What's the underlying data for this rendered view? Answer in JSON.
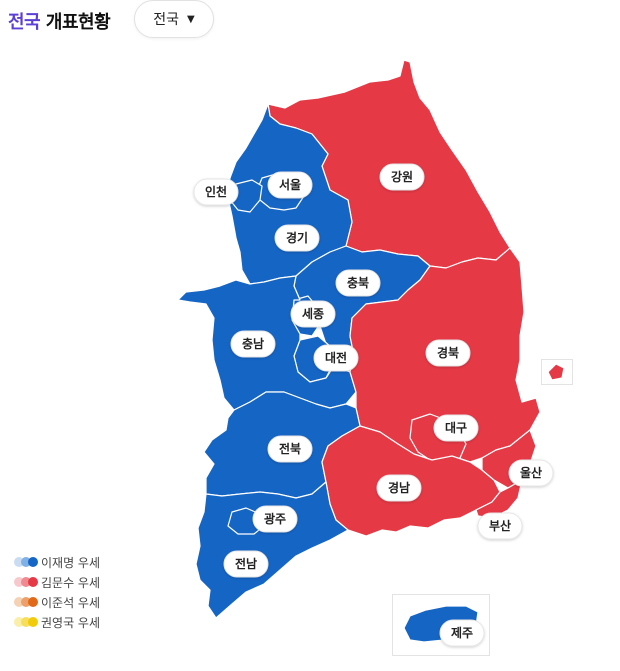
{
  "header": {
    "title_accent": "전국",
    "title_rest": " 개표현황",
    "dropdown_value": "전국"
  },
  "colors": {
    "blue": "#1565c5",
    "red": "#e63946"
  },
  "regions": [
    {
      "name": "서울",
      "leader": "이재명"
    },
    {
      "name": "인천",
      "leader": "이재명"
    },
    {
      "name": "경기",
      "leader": "이재명"
    },
    {
      "name": "강원",
      "leader": "김문수"
    },
    {
      "name": "충북",
      "leader": "이재명"
    },
    {
      "name": "세종",
      "leader": "이재명"
    },
    {
      "name": "충남",
      "leader": "이재명"
    },
    {
      "name": "대전",
      "leader": "이재명"
    },
    {
      "name": "경북",
      "leader": "김문수"
    },
    {
      "name": "대구",
      "leader": "김문수"
    },
    {
      "name": "전북",
      "leader": "이재명"
    },
    {
      "name": "울산",
      "leader": "김문수"
    },
    {
      "name": "경남",
      "leader": "김문수"
    },
    {
      "name": "광주",
      "leader": "이재명"
    },
    {
      "name": "부산",
      "leader": "김문수"
    },
    {
      "name": "전남",
      "leader": "이재명"
    },
    {
      "name": "제주",
      "leader": "이재명"
    }
  ],
  "legend": [
    {
      "label": "이재명 우세",
      "colors": [
        "#c9dcf2",
        "#7fb0e6",
        "#1565c5"
      ]
    },
    {
      "label": "김문수 우세",
      "colors": [
        "#f7c9cc",
        "#ef8a91",
        "#e63946"
      ]
    },
    {
      "label": "이준석 우세",
      "colors": [
        "#f6d2b4",
        "#eea06a",
        "#e06a1a"
      ]
    },
    {
      "label": "권영국 우세",
      "colors": [
        "#fbeea8",
        "#f7df5c",
        "#f2cb0c"
      ]
    }
  ]
}
